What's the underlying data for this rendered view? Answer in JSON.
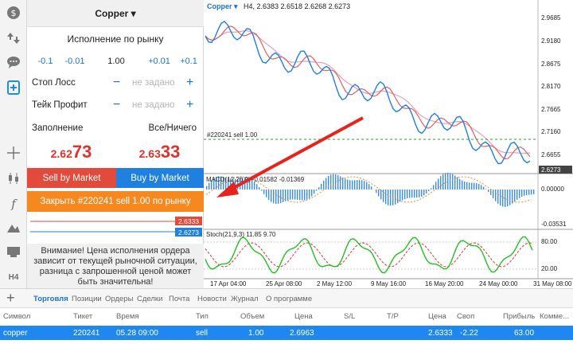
{
  "toolbar": {
    "icons": [
      "currency-icon",
      "up-down-icon",
      "chat-icon",
      "new-order-icon",
      "crosshair-icon",
      "candles-icon",
      "indicators-icon",
      "objects-icon",
      "templates-icon"
    ],
    "timeframe": "H4"
  },
  "order_panel": {
    "symbol": "Copper ▾",
    "execution": "Исполнение по рынку",
    "volume_steps": [
      "-0.1",
      "-0.01",
      "1.00",
      "+0.01",
      "+0.1"
    ],
    "stop_loss": {
      "label": "Стоп Лосс",
      "value": "не задано"
    },
    "take_profit": {
      "label": "Тейк Профит",
      "value": "не задано"
    },
    "fill_label": "Заполнение",
    "fill_value": "Все/Ничего",
    "bid_small": "2.62",
    "bid_large": "73",
    "ask_small": "2.63",
    "ask_large": "33",
    "sell_button": "Sell by Market",
    "buy_button": "Buy by Market",
    "close_button": "Закрыть #220241 sell 1.00 по рынку",
    "mini_ask": "2.6333",
    "mini_bid": "2.6273",
    "warning": "Внимание! Цена исполнения ордера зависит от текущей рыночной ситуации, разница с запрошенной ценой может быть значительна!"
  },
  "chart": {
    "header_symbol": "Copper ▾",
    "header_ohlc": "H4, 2.6383 2.6518 2.6268 2.6273",
    "order_label": "#220241 sell 1.00",
    "macd_label": "MACD(12,26,9) -0.01582 -0.01369",
    "stoch_label": "Stoch(21,9,3) 11.85 9.70",
    "price_ticks": [
      "2.9685",
      "2.9180",
      "2.8675",
      "2.8170",
      "2.7665",
      "2.7160",
      "2.6655"
    ],
    "current_price": "2.6273",
    "macd_ticks": [
      "0.00000",
      "-0.03531"
    ],
    "stoch_ticks": [
      "80.00",
      "20.00"
    ],
    "time_ticks": [
      "17 Apr 04:00",
      "25 Apr 08:00",
      "2 May 12:00",
      "9 May 16:00",
      "16 May 20:00",
      "24 May 00:00",
      "31 May 08:00"
    ],
    "colors": {
      "price": "#1f7fe0",
      "ma_red": "#e06060",
      "ma_pink": "#e0a0c0",
      "stoch": "#22c022",
      "signal": "#e03030",
      "macd_bar": "#3a8ee8",
      "arrow": "#e8221c"
    }
  },
  "bottom": {
    "tabs": [
      "Торговля",
      "Позиции",
      "Ордеры",
      "Сделки",
      "Почта",
      "Новости",
      "Журнал",
      "О программе"
    ],
    "active_tab": 0,
    "columns": [
      "Символ",
      "Тикет",
      "Время",
      "Тип",
      "Объем",
      "Цена",
      "S/L",
      "T/P",
      "Цена",
      "Своп",
      "Прибыль",
      "Комме..."
    ],
    "position": [
      "copper",
      "220241",
      "05.28 09:00",
      "sell",
      "1.00",
      "2.6963",
      "",
      "",
      "2.6333",
      "-2.22",
      "63.00",
      ""
    ]
  }
}
